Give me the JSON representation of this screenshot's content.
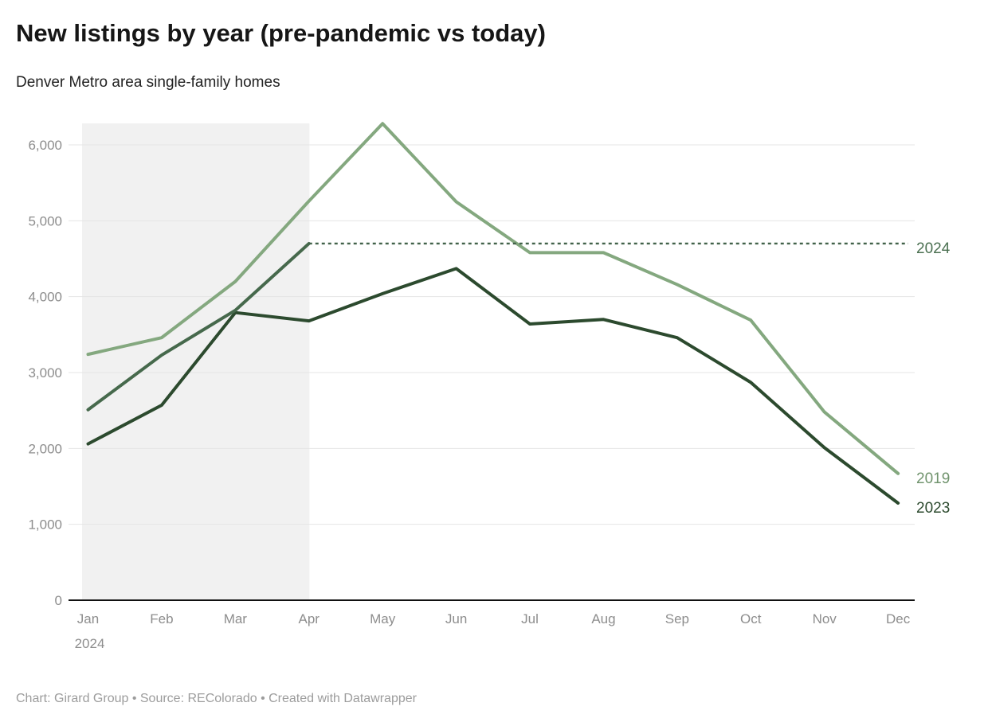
{
  "header": {
    "title": "New listings by year (pre-pandemic vs today)",
    "subtitle": "Denver Metro area single-family homes"
  },
  "footer": {
    "text": "Chart: Girard Group • Source: REColorado • Created with Datawrapper"
  },
  "chart_data": {
    "type": "line",
    "title": "New listings by year (pre-pandemic vs today)",
    "subtitle": "Denver Metro area single-family homes",
    "categories": [
      "Jan",
      "Feb",
      "Mar",
      "Apr",
      "May",
      "Jun",
      "Jul",
      "Aug",
      "Sep",
      "Oct",
      "Nov",
      "Dec"
    ],
    "x_year_note": "2024",
    "ylim": [
      0,
      6300
    ],
    "yticks": [
      0,
      1000,
      2000,
      3000,
      4000,
      5000,
      6000
    ],
    "ytick_labels": [
      "0",
      "1,000",
      "2,000",
      "3,000",
      "4,000",
      "5,000",
      "6,000"
    ],
    "grid": "horizontal",
    "legend_position": "line-end-labels-right",
    "highlight_band": {
      "from": "Jan",
      "to": "Apr",
      "color": "#f1f1f1"
    },
    "series": [
      {
        "name": "2019",
        "color": "#84a87f",
        "label_color": "#71946e",
        "style": "solid",
        "values": [
          3240,
          3460,
          4200,
          5260,
          6280,
          5250,
          4580,
          4580,
          4160,
          3690,
          2480,
          1670
        ]
      },
      {
        "name": "2023",
        "color": "#2c4a2e",
        "label_color": "#2c4a2e",
        "style": "solid",
        "values": [
          2060,
          2570,
          3790,
          3680,
          4040,
          4370,
          3640,
          3700,
          3460,
          2870,
          2010,
          1280
        ]
      },
      {
        "name": "2024",
        "color": "#46694c",
        "label_color": "#4b7051",
        "style": "solid-then-dashed",
        "values": [
          2510,
          3230,
          3820,
          4700
        ],
        "dashed_projection": {
          "from_month": "Apr",
          "to_month": "Dec",
          "value": 4700
        }
      }
    ],
    "colors": {
      "gridline": "#e5e5e5",
      "axis_baseline": "#111111",
      "axis_text": "#8d8d8d"
    }
  }
}
